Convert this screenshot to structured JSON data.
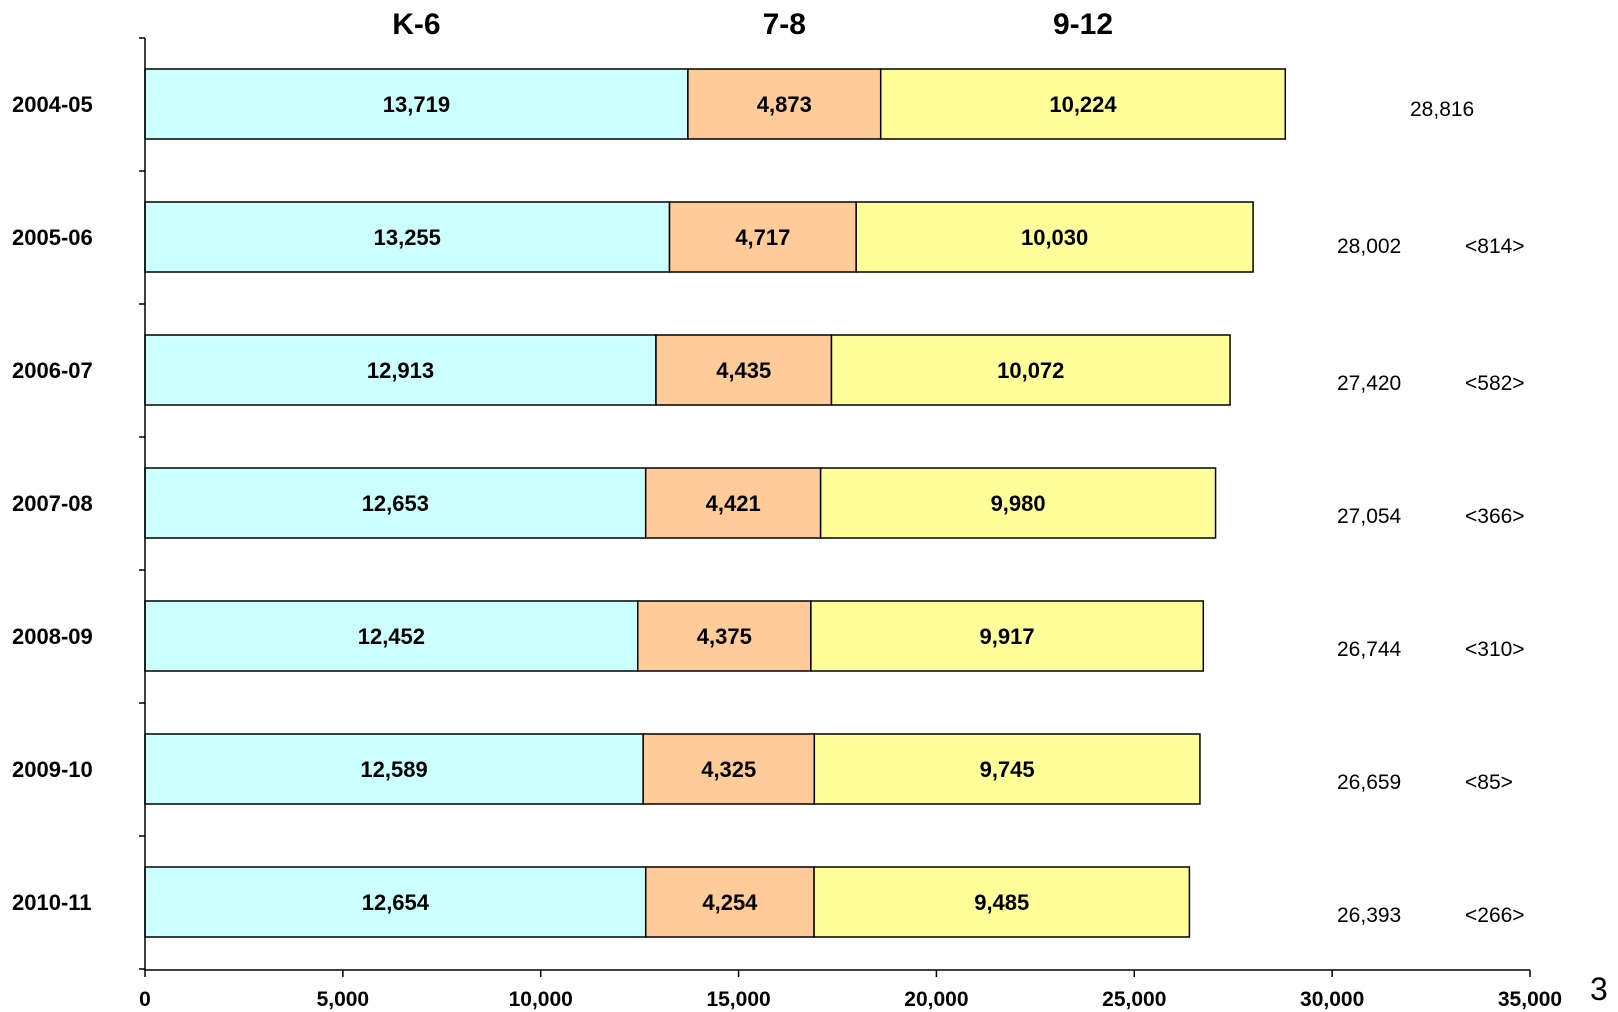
{
  "chart_data": {
    "type": "bar",
    "orientation": "horizontal",
    "stacked": true,
    "categories": [
      "2004-05",
      "2005-06",
      "2006-07",
      "2007-08",
      "2008-09",
      "2009-10",
      "2010-11"
    ],
    "series": [
      {
        "name": "K-6",
        "color": "#CCFFFF",
        "values": [
          13719,
          13255,
          12913,
          12653,
          12452,
          12589,
          12654
        ],
        "labels": [
          "13,719",
          "13,255",
          "12,913",
          "12,653",
          "12,452",
          "12,589",
          "12,654"
        ]
      },
      {
        "name": "7-8",
        "color": "#FFCC99",
        "values": [
          4873,
          4717,
          4435,
          4421,
          4375,
          4325,
          4254
        ],
        "labels": [
          "4,873",
          "4,717",
          "4,435",
          "4,421",
          "4,375",
          "4,325",
          "4,254"
        ]
      },
      {
        "name": "9-12",
        "color": "#FFFF99",
        "values": [
          10224,
          10030,
          10072,
          9980,
          9917,
          9745,
          9485
        ],
        "labels": [
          "10,224",
          "10,030",
          "10,072",
          "9,980",
          "9,917",
          "9,745",
          "9,485"
        ]
      }
    ],
    "totals": [
      "28,816",
      "28,002",
      "27,420",
      "27,054",
      "26,744",
      "26,659",
      "26,393"
    ],
    "changes": [
      "",
      "<814>",
      "<582>",
      "<366>",
      "<310>",
      "<85>",
      "<266>"
    ],
    "xlim": [
      0,
      35000
    ],
    "xticks": [
      0,
      5000,
      10000,
      15000,
      20000,
      25000,
      30000,
      35000
    ],
    "xtick_labels": [
      "0",
      "5,000",
      "10,000",
      "15,000",
      "20,000",
      "25,000",
      "30,000",
      "35,000"
    ],
    "grid": false,
    "title": "",
    "xlabel": "",
    "ylabel": ""
  },
  "page_number": "3"
}
